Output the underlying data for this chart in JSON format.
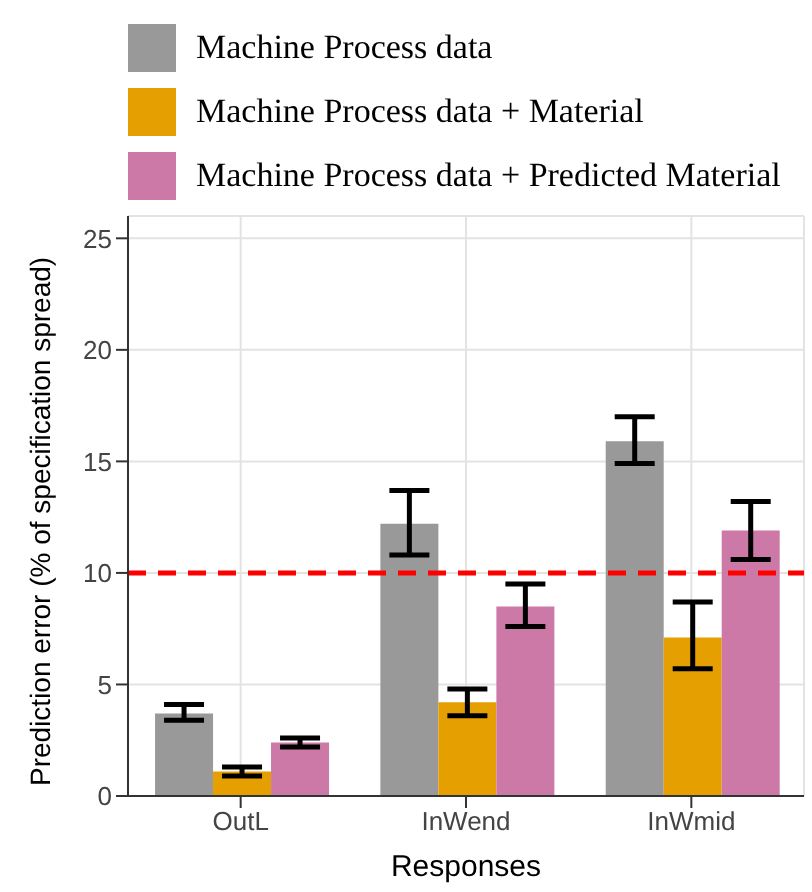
{
  "chart_data": {
    "type": "bar",
    "xlabel": "Responses",
    "ylabel": "Prediction error (% of specification spread)",
    "categories": [
      "OutL",
      "InWend",
      "InWmid"
    ],
    "series": [
      {
        "name": "Machine Process data",
        "color": "#999999",
        "values": [
          3.7,
          12.2,
          15.9
        ],
        "errors": [
          [
            3.4,
            4.1
          ],
          [
            10.8,
            13.7
          ],
          [
            14.9,
            17.0
          ]
        ]
      },
      {
        "name": "Machine Process data + Material",
        "color": "#e69f00",
        "values": [
          1.1,
          4.2,
          7.1
        ],
        "errors": [
          [
            0.9,
            1.3
          ],
          [
            3.6,
            4.8
          ],
          [
            5.7,
            8.7
          ]
        ]
      },
      {
        "name": "Machine Process data + Predicted Material",
        "color": "#cc79a7",
        "values": [
          2.4,
          8.5,
          11.9
        ],
        "errors": [
          [
            2.2,
            2.6
          ],
          [
            7.6,
            9.5
          ],
          [
            10.6,
            13.2
          ]
        ]
      }
    ],
    "ylim": [
      0,
      26
    ],
    "yticks": [
      0,
      5,
      10,
      15,
      20,
      25
    ],
    "grid": true,
    "legend": "top",
    "ref_lines": [
      {
        "axis": "y",
        "value": 10,
        "color": "#ff0000",
        "line_style": "dashed"
      }
    ]
  }
}
